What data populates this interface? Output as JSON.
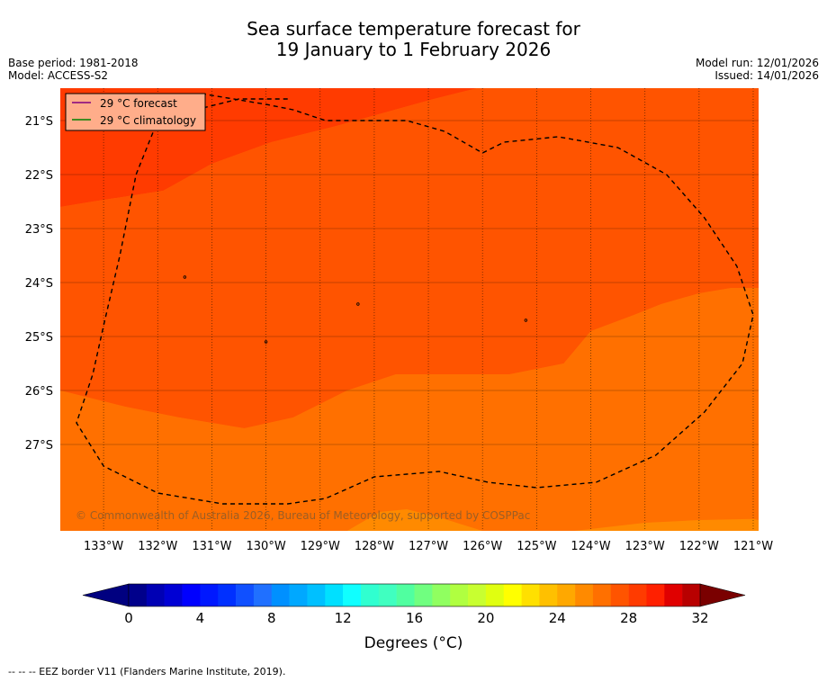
{
  "title": {
    "line1": "Sea surface temperature forecast for",
    "line2": "19 January to 1 February 2026"
  },
  "meta": {
    "base_period": "Base period: 1981-2018",
    "model": "Model: ACCESS-S2",
    "model_run": "Model run: 12/01/2026",
    "issued": "Issued: 14/01/2026"
  },
  "map": {
    "lon_range": [
      -133.8,
      -120.9
    ],
    "lat_range": [
      -28.6,
      -20.4
    ],
    "lat_ticks": [
      {
        "value": -21,
        "label": "21°S"
      },
      {
        "value": -22,
        "label": "22°S"
      },
      {
        "value": -23,
        "label": "23°S"
      },
      {
        "value": -24,
        "label": "24°S"
      },
      {
        "value": -25,
        "label": "25°S"
      },
      {
        "value": -26,
        "label": "26°S"
      },
      {
        "value": -27,
        "label": "27°S"
      }
    ],
    "lon_ticks": [
      {
        "value": -133,
        "label": "133°W"
      },
      {
        "value": -132,
        "label": "132°W"
      },
      {
        "value": -131,
        "label": "131°W"
      },
      {
        "value": -130,
        "label": "130°W"
      },
      {
        "value": -129,
        "label": "129°W"
      },
      {
        "value": -128,
        "label": "128°W"
      },
      {
        "value": -127,
        "label": "127°W"
      },
      {
        "value": -126,
        "label": "126°W"
      },
      {
        "value": -125,
        "label": "125°W"
      },
      {
        "value": -124,
        "label": "124°W"
      },
      {
        "value": -123,
        "label": "123°W"
      },
      {
        "value": -122,
        "label": "122°W"
      },
      {
        "value": -121,
        "label": "121°W"
      }
    ],
    "temperature_bands": [
      {
        "name": "band-29-30",
        "range": "29-30 °C",
        "color": "#ff3b00",
        "poly": [
          [
            -133.8,
            -20.4
          ],
          [
            -126.1,
            -20.4
          ],
          [
            -126.9,
            -20.6
          ],
          [
            -128.7,
            -21.1
          ],
          [
            -129.9,
            -21.4
          ],
          [
            -131.0,
            -21.8
          ],
          [
            -131.9,
            -22.3
          ],
          [
            -133.2,
            -22.5
          ],
          [
            -133.8,
            -22.6
          ]
        ]
      },
      {
        "name": "band-28-29",
        "range": "28-29 °C",
        "color": "#ff5400",
        "poly": [
          [
            -133.8,
            -22.6
          ],
          [
            -133.2,
            -22.5
          ],
          [
            -131.9,
            -22.3
          ],
          [
            -131.0,
            -21.8
          ],
          [
            -129.9,
            -21.4
          ],
          [
            -128.7,
            -21.1
          ],
          [
            -126.9,
            -20.6
          ],
          [
            -126.1,
            -20.4
          ],
          [
            -120.9,
            -20.4
          ],
          [
            -120.9,
            -24.1
          ],
          [
            -121.4,
            -24.1
          ],
          [
            -122.0,
            -24.2
          ],
          [
            -122.7,
            -24.4
          ],
          [
            -123.2,
            -24.6
          ],
          [
            -124.0,
            -24.9
          ],
          [
            -124.5,
            -25.5
          ],
          [
            -125.5,
            -25.7
          ],
          [
            -126.5,
            -25.7
          ],
          [
            -127.6,
            -25.7
          ],
          [
            -128.5,
            -26.0
          ],
          [
            -129.5,
            -26.5
          ],
          [
            -130.4,
            -26.7
          ],
          [
            -131.6,
            -26.5
          ],
          [
            -132.6,
            -26.3
          ],
          [
            -133.8,
            -26.0
          ]
        ]
      },
      {
        "name": "band-27-28",
        "range": "27-28 °C",
        "color": "#ff7000",
        "poly": [
          [
            -133.8,
            -26.0
          ],
          [
            -132.6,
            -26.3
          ],
          [
            -131.6,
            -26.5
          ],
          [
            -130.4,
            -26.7
          ],
          [
            -129.5,
            -26.5
          ],
          [
            -128.5,
            -26.0
          ],
          [
            -127.6,
            -25.7
          ],
          [
            -126.5,
            -25.7
          ],
          [
            -125.5,
            -25.7
          ],
          [
            -124.5,
            -25.5
          ],
          [
            -124.0,
            -24.9
          ],
          [
            -123.2,
            -24.6
          ],
          [
            -122.7,
            -24.4
          ],
          [
            -122.0,
            -24.2
          ],
          [
            -121.4,
            -24.1
          ],
          [
            -120.9,
            -24.1
          ],
          [
            -120.9,
            -28.6
          ],
          [
            -133.8,
            -28.6
          ]
        ]
      },
      {
        "name": "band-26-27",
        "range": "26-27 °C",
        "color": "#ff8a00",
        "poly": [
          [
            -128.5,
            -28.6
          ],
          [
            -127.9,
            -28.25
          ],
          [
            -127.4,
            -28.2
          ],
          [
            -126.8,
            -28.35
          ],
          [
            -126.0,
            -28.6
          ]
        ]
      },
      {
        "name": "band-26-27-east",
        "range": "26-27 °C",
        "color": "#ff8a00",
        "poly": [
          [
            -124.3,
            -28.6
          ],
          [
            -123.0,
            -28.45
          ],
          [
            -122.0,
            -28.4
          ],
          [
            -121.0,
            -28.38
          ],
          [
            -120.9,
            -28.4
          ],
          [
            -120.9,
            -28.6
          ]
        ]
      }
    ],
    "eez_border": [
      [
        -129.6,
        -20.6
      ],
      [
        -130.5,
        -20.6
      ],
      [
        -131.3,
        -20.8
      ],
      [
        -132.0,
        -21.0
      ],
      [
        -132.4,
        -22.0
      ],
      [
        -132.7,
        -23.5
      ],
      [
        -133.0,
        -24.8
      ],
      [
        -133.2,
        -25.7
      ],
      [
        -133.5,
        -26.6
      ],
      [
        -133.0,
        -27.4
      ],
      [
        -132.0,
        -27.9
      ],
      [
        -130.8,
        -28.1
      ],
      [
        -129.6,
        -28.1
      ],
      [
        -128.9,
        -28.0
      ],
      [
        -128.0,
        -27.6
      ],
      [
        -126.8,
        -27.5
      ],
      [
        -125.9,
        -27.7
      ],
      [
        -125.0,
        -27.8
      ],
      [
        -123.9,
        -27.7
      ],
      [
        -122.8,
        -27.2
      ],
      [
        -121.9,
        -26.4
      ],
      [
        -121.2,
        -25.5
      ],
      [
        -121.0,
        -24.6
      ],
      [
        -121.3,
        -23.7
      ],
      [
        -121.9,
        -22.8
      ],
      [
        -122.6,
        -22.0
      ],
      [
        -123.5,
        -21.5
      ],
      [
        -124.6,
        -21.3
      ],
      [
        -125.6,
        -21.4
      ],
      [
        -126.0,
        -21.6
      ],
      [
        -126.7,
        -21.2
      ],
      [
        -127.4,
        -21.0
      ],
      [
        -128.5,
        -21.0
      ],
      [
        -128.9,
        -21.0
      ],
      [
        -129.5,
        -20.8
      ],
      [
        -130.0,
        -20.7
      ],
      [
        -131.2,
        -20.5
      ]
    ],
    "islands": [
      [
        -128.3,
        -24.4
      ],
      [
        -130.0,
        -25.1
      ],
      [
        -131.5,
        -23.9
      ],
      [
        -125.2,
        -24.7
      ]
    ],
    "copyright": "© Commonwealth of Australia 2026, Bureau of Meteorology, supported by COSPPac",
    "legend": {
      "forecast_label": "29 °C  forecast",
      "forecast_color": "#800080",
      "climatology_label": "29 °C  climatology",
      "climatology_color": "#008000"
    }
  },
  "colorbar": {
    "min": 0,
    "max": 32,
    "step": 1,
    "colors": [
      "#00008b",
      "#0000b4",
      "#0000d4",
      "#0000ff",
      "#0018ff",
      "#0030ff",
      "#1050ff",
      "#2070ff",
      "#0090ff",
      "#00a8ff",
      "#00c0ff",
      "#00e0ff",
      "#10ffff",
      "#30ffd0",
      "#40ffc0",
      "#50ffa0",
      "#70ff80",
      "#90ff60",
      "#b0ff40",
      "#c8ff30",
      "#e0ff10",
      "#ffff00",
      "#ffe000",
      "#ffc000",
      "#ffa800",
      "#ff8a00",
      "#ff7000",
      "#ff5400",
      "#ff3b00",
      "#ff2000",
      "#e00000",
      "#b80000"
    ],
    "under_color": "#000080",
    "over_color": "#7a0000",
    "ticks": [
      {
        "value": 0,
        "label": "0"
      },
      {
        "value": 4,
        "label": "4"
      },
      {
        "value": 8,
        "label": "8"
      },
      {
        "value": 12,
        "label": "12"
      },
      {
        "value": 16,
        "label": "16"
      },
      {
        "value": 20,
        "label": "20"
      },
      {
        "value": 24,
        "label": "24"
      },
      {
        "value": 28,
        "label": "28"
      },
      {
        "value": 32,
        "label": "32"
      }
    ],
    "label": "Degrees (°C)"
  },
  "footnote": "--  --  -- EEZ border V11 (Flanders Marine Institute, 2019)."
}
